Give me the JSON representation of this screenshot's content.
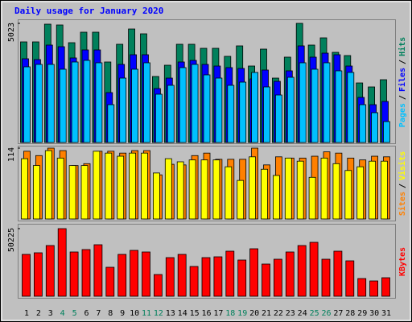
{
  "chart_data": [
    {
      "type": "bar",
      "title": "Daily usage for January 2020",
      "categories": [
        "1",
        "2",
        "3",
        "4",
        "5",
        "6",
        "7",
        "8",
        "9",
        "10",
        "11",
        "12",
        "13",
        "14",
        "15",
        "16",
        "17",
        "18",
        "19",
        "20",
        "21",
        "22",
        "23",
        "24",
        "25",
        "26",
        "27",
        "28",
        "29",
        "30",
        "31"
      ],
      "category_colors": [
        "#000000",
        "#000000",
        "#000000",
        "#00805c",
        "#00805c",
        "#000000",
        "#000000",
        "#000000",
        "#000000",
        "#000000",
        "#00805c",
        "#00805c",
        "#000000",
        "#000000",
        "#000000",
        "#000000",
        "#000000",
        "#00805c",
        "#00805c",
        "#000000",
        "#000000",
        "#000000",
        "#000000",
        "#000000",
        "#00805c",
        "#00805c",
        "#000000",
        "#000000",
        "#000000",
        "#000000",
        "#000000"
      ],
      "legend_separator": "/",
      "ylim": [
        0,
        5023
      ],
      "yticks": [
        5023
      ],
      "series": [
        {
          "name": "Hits",
          "color": "#00805c",
          "values": [
            4242,
            4242,
            4989,
            4955,
            4208,
            4650,
            4650,
            3394,
            4141,
            4785,
            4582,
            2783,
            3258,
            4141,
            4141,
            3971,
            3971,
            3632,
            4073,
            3224,
            3937,
            2715,
            3598,
            5023,
            4107,
            4412,
            3801,
            3665,
            2511,
            2342,
            2647
          ]
        },
        {
          "name": "Files",
          "color": "#0000ff",
          "values": [
            3530,
            3496,
            4107,
            4039,
            3564,
            3903,
            3903,
            2104,
            3292,
            3700,
            3700,
            2274,
            2715,
            3394,
            3462,
            3292,
            3224,
            3157,
            3122,
            2681,
            3055,
            2579,
            3021,
            4073,
            3598,
            3767,
            3700,
            3224,
            1901,
            1595,
            1731
          ]
        },
        {
          "name": "Pages",
          "color": "#00c0ff",
          "values": [
            3190,
            3292,
            3292,
            3089,
            3394,
            3462,
            3360,
            1595,
            2715,
            3089,
            3360,
            2036,
            2410,
            3157,
            3292,
            2851,
            2715,
            2410,
            2545,
            2953,
            2342,
            2002,
            2749,
            3360,
            3089,
            3360,
            3021,
            2953,
            1595,
            1256,
            882
          ]
        }
      ]
    },
    {
      "type": "bar",
      "ylim": [
        0,
        114
      ],
      "yticks": [
        114
      ],
      "series": [
        {
          "name": "Sites",
          "color": "#ff8000",
          "values": [
            109,
            102,
            114,
            110,
            86,
            89,
            109,
            109,
            106,
            110,
            110,
            71,
            88,
            87,
            102,
            106,
            96,
            96,
            96,
            114,
            87,
            100,
            98,
            98,
            101,
            108,
            106,
            98,
            95,
            101,
            100
          ]
        },
        {
          "name": "Visits",
          "color": "#ffff00",
          "values": [
            97,
            86,
            110,
            98,
            86,
            86,
            109,
            106,
            101,
            106,
            106,
            74,
            97,
            92,
            95,
            95,
            95,
            84,
            62,
            100,
            80,
            70,
            98,
            93,
            67,
            98,
            89,
            78,
            84,
            93,
            93
          ]
        }
      ]
    },
    {
      "type": "bar",
      "ylim": [
        0,
        50225
      ],
      "yticks": [
        50225
      ],
      "series": [
        {
          "name": "KBytes",
          "color": "#ff0000",
          "values": [
            31091,
            32287,
            37668,
            50225,
            32885,
            34678,
            38266,
            21524,
            31091,
            34080,
            32885,
            16143,
            28699,
            31091,
            22122,
            28699,
            29297,
            33482,
            26906,
            35276,
            23916,
            27503,
            32885,
            37668,
            40059,
            27503,
            33482,
            26308,
            13154,
            11360,
            13752
          ]
        }
      ]
    }
  ]
}
